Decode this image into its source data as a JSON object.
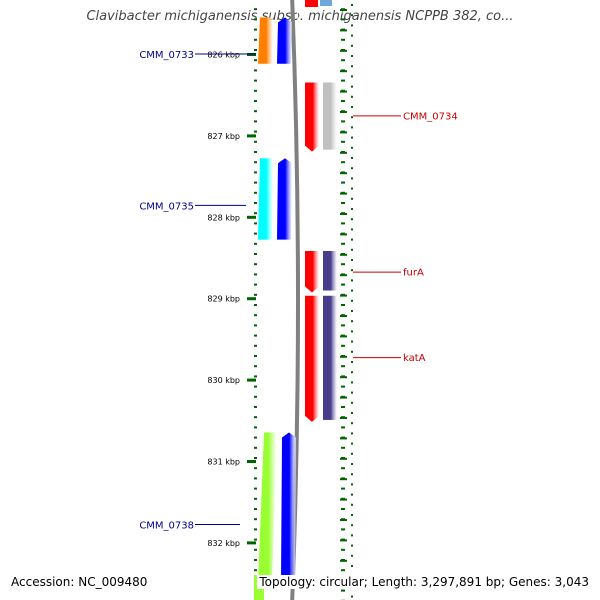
{
  "title": "Clavibacter michiganensis subsp. michiganensis NCPPB 382, co...",
  "footer": {
    "accession": "Accession: NC_009480",
    "summary": "Topology: circular; Length: 3,297,891 bp; Genes: 3,043"
  },
  "scale": {
    "unit": "kbp",
    "ticks": [
      "826 kbp",
      "827 kbp",
      "828 kbp",
      "829 kbp",
      "830 kbp",
      "831 kbp",
      "832 kbp"
    ]
  },
  "genes": [
    {
      "label": "CMM_0733",
      "strand": "left",
      "start_kbp": 825.55,
      "end_kbp": 826.12,
      "color": "#ff8000",
      "color_alt": "#0000ff"
    },
    {
      "label": "CMM_0734",
      "strand": "right",
      "start_kbp": 826.35,
      "end_kbp": 827.2,
      "color": "#ff0000",
      "color_alt": "#c0c0c0"
    },
    {
      "label": "CMM_0735",
      "strand": "left",
      "start_kbp": 827.28,
      "end_kbp": 828.28,
      "color": "#00ffff",
      "color_alt": "#0000ff"
    },
    {
      "label": "furA",
      "strand": "right",
      "start_kbp": 828.42,
      "end_kbp": 828.93,
      "color": "#ff0000",
      "color_alt": "#483d8b"
    },
    {
      "label": "katA",
      "strand": "right",
      "start_kbp": 828.97,
      "end_kbp": 830.52,
      "color": "#ff0000",
      "color_alt": "#483d8b"
    },
    {
      "label": "CMM_0738",
      "strand": "left",
      "start_kbp": 830.65,
      "end_kbp": 832.5,
      "color": "#99ff33",
      "color_alt": "#0000ff"
    }
  ],
  "colors": {
    "left_label": "#00008b",
    "right_label": "#cc0000",
    "tick": "#006400",
    "backbone": "#808080"
  }
}
